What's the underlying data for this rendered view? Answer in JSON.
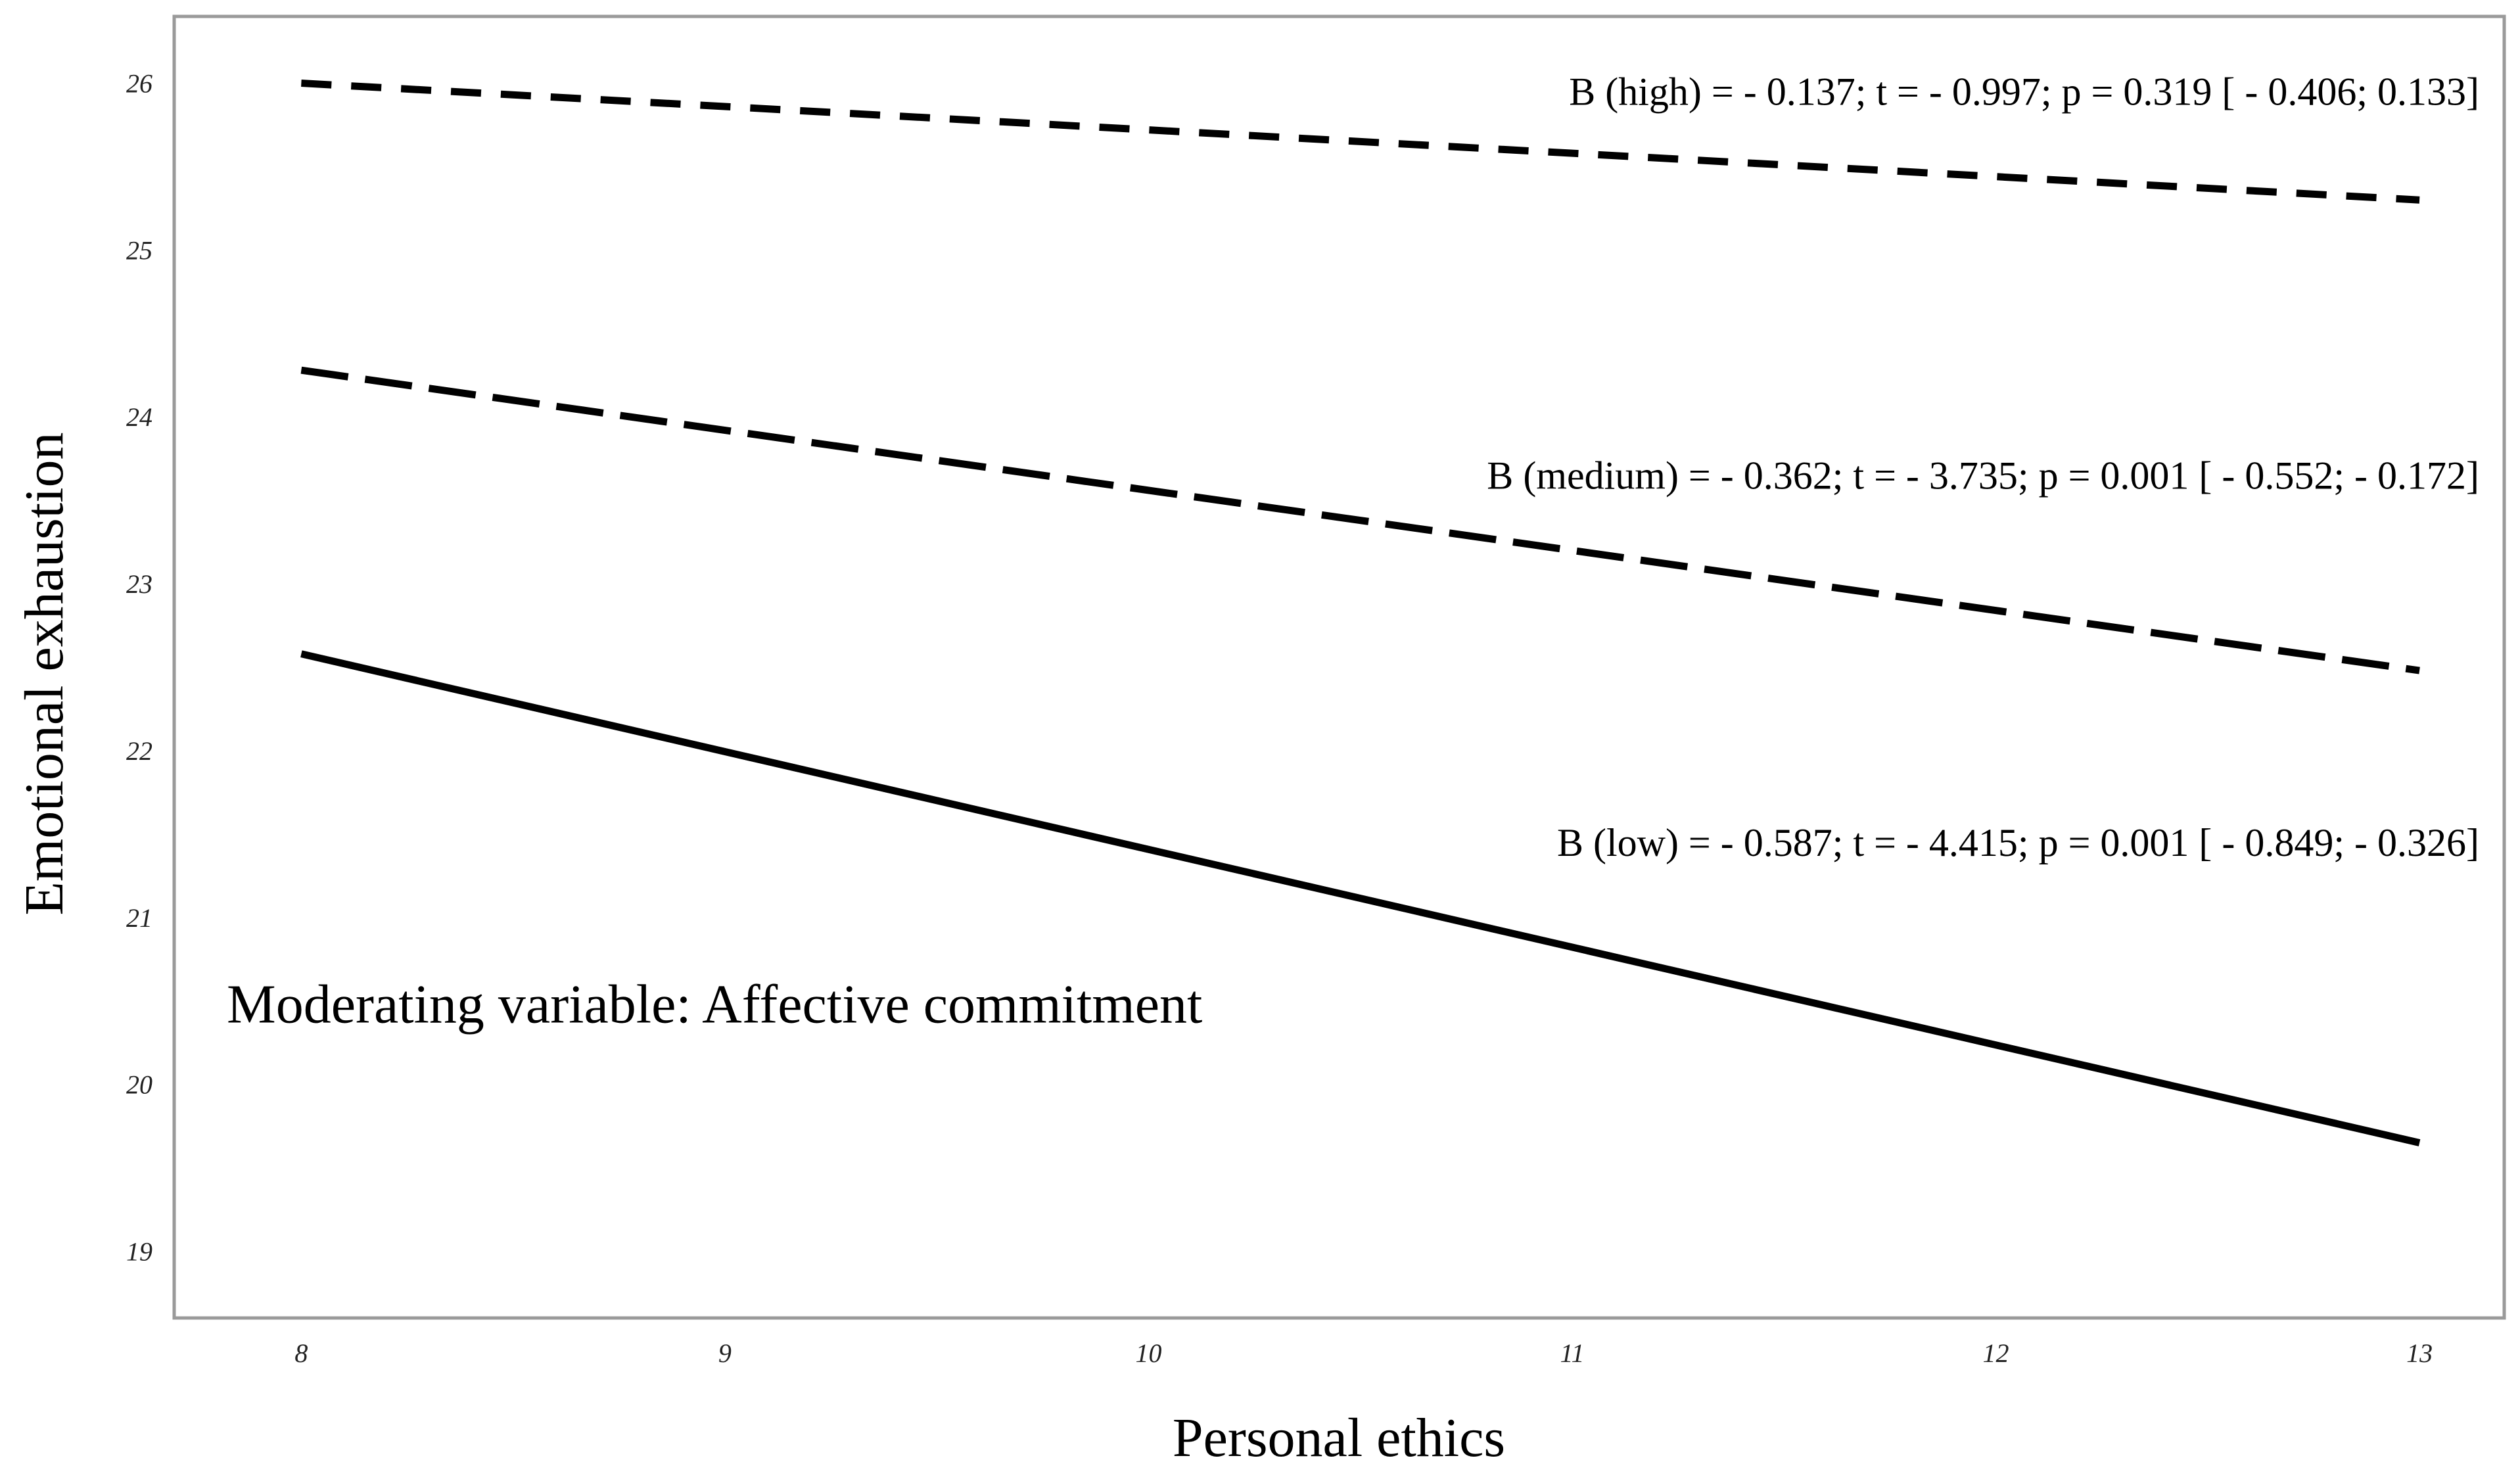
{
  "chart_data": {
    "type": "line",
    "title": "",
    "xlabel": "Personal ethics",
    "ylabel": "Emotional exhaustion",
    "xlim": [
      7.7,
      13.2
    ],
    "ylim": [
      18.6,
      26.4
    ],
    "x_ticks": [
      8,
      9,
      10,
      11,
      12,
      13
    ],
    "y_ticks": [
      19,
      20,
      21,
      22,
      23,
      24,
      25,
      26
    ],
    "grid": false,
    "series": [
      {
        "name": "high",
        "style": "dashed-short",
        "x": [
          8,
          13
        ],
        "y": [
          26.0,
          25.3
        ],
        "annotation": "B (high) = - 0.137; t = - 0.997; p = 0.319 [ - 0.406; 0.133]",
        "annotation_y": 25.87
      },
      {
        "name": "medium",
        "style": "dashed-long",
        "x": [
          8,
          13
        ],
        "y": [
          24.28,
          22.48
        ],
        "annotation": "B (medium) = - 0.362; t = - 3.735; p = 0.001 [ - 0.552; - 0.172]",
        "annotation_y": 23.57
      },
      {
        "name": "low",
        "style": "solid",
        "x": [
          8,
          13
        ],
        "y": [
          22.58,
          19.65
        ],
        "annotation": "B (low) = - 0.587; t = - 4.415; p = 0.001 [ - 0.849; - 0.326]",
        "annotation_y": 21.37
      }
    ],
    "note": "Moderating variable: Affective commitment",
    "note_y": 20.37
  }
}
